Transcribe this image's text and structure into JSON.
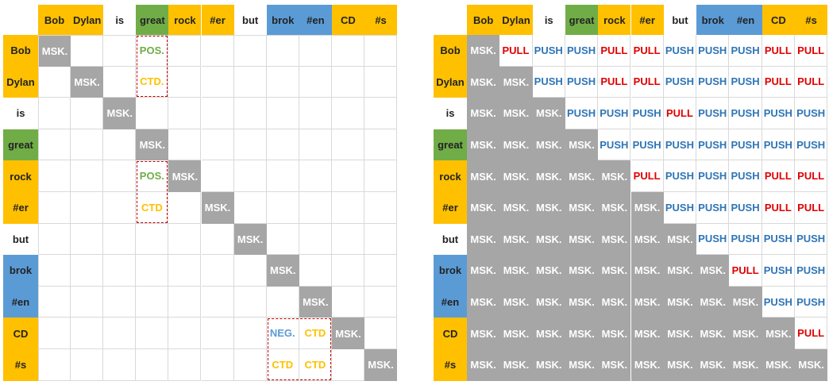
{
  "colors": {
    "yellow": "#ffc000",
    "green": "#70ad47",
    "blue": "#5b9bd5",
    "mask_gray": "#a6a6a6",
    "push_blue": "#2e75b6",
    "pull_red": "#e00000",
    "dashed_outline": "#c00000"
  },
  "tokens": [
    {
      "text": "Bob",
      "highlight": "yellow"
    },
    {
      "text": "Dylan",
      "highlight": "yellow"
    },
    {
      "text": "is",
      "highlight": null
    },
    {
      "text": "great",
      "highlight": "green"
    },
    {
      "text": "rock",
      "highlight": "yellow"
    },
    {
      "text": "#er",
      "highlight": "yellow"
    },
    {
      "text": "but",
      "highlight": null
    },
    {
      "text": "brok",
      "highlight": "blue"
    },
    {
      "text": "#en",
      "highlight": "blue"
    },
    {
      "text": "CD",
      "highlight": "yellow"
    },
    {
      "text": "#s",
      "highlight": "yellow"
    }
  ],
  "left_matrix": {
    "mask_label": "MSK.",
    "annotations": [
      {
        "row": 0,
        "col": 3,
        "text": "POS.",
        "color": "green"
      },
      {
        "row": 1,
        "col": 3,
        "text": "CTD.",
        "color": "yellow"
      },
      {
        "row": 4,
        "col": 3,
        "text": "POS.",
        "color": "green"
      },
      {
        "row": 5,
        "col": 3,
        "text": "CTD",
        "color": "yellow"
      },
      {
        "row": 9,
        "col": 7,
        "text": "NEG.",
        "color": "blue"
      },
      {
        "row": 9,
        "col": 8,
        "text": "CTD",
        "color": "yellow"
      },
      {
        "row": 10,
        "col": 7,
        "text": "CTD",
        "color": "yellow"
      },
      {
        "row": 10,
        "col": 8,
        "text": "CTD",
        "color": "yellow"
      }
    ],
    "dashed_groups": [
      {
        "row_start": 0,
        "row_end": 1,
        "col_start": 3,
        "col_end": 3
      },
      {
        "row_start": 4,
        "row_end": 5,
        "col_start": 3,
        "col_end": 3
      },
      {
        "row_start": 9,
        "row_end": 10,
        "col_start": 7,
        "col_end": 8
      }
    ]
  },
  "right_matrix": {
    "mask_label": "MSK.",
    "push_label": "PUSH",
    "pull_label": "PULL",
    "upper_triangle": [
      [
        "L",
        "P",
        "P",
        "L",
        "L",
        "P",
        "P",
        "P",
        "L",
        "L"
      ],
      [
        "P",
        "P",
        "L",
        "L",
        "P",
        "P",
        "P",
        "L",
        "L"
      ],
      [
        "P",
        "P",
        "P",
        "L",
        "P",
        "P",
        "P",
        "P"
      ],
      [
        "P",
        "P",
        "P",
        "P",
        "P",
        "P",
        "P"
      ],
      [
        "L",
        "P",
        "P",
        "P",
        "L",
        "L"
      ],
      [
        "P",
        "P",
        "P",
        "L",
        "L"
      ],
      [
        "P",
        "P",
        "P",
        "P"
      ],
      [
        "L",
        "P",
        "P"
      ],
      [
        "P",
        "P"
      ],
      [
        "L"
      ]
    ]
  }
}
